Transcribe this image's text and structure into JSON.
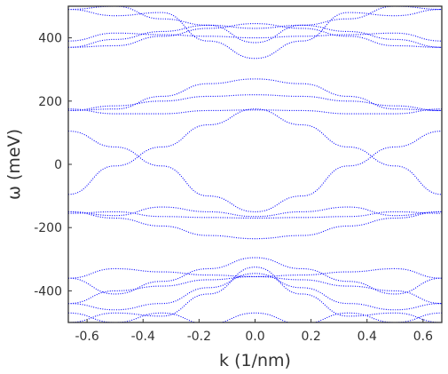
{
  "chart_data": {
    "type": "scatter",
    "xlabel": "k (1/nm)",
    "ylabel": "ω (meV)",
    "xlim": [
      -0.667,
      0.667
    ],
    "ylim": [
      -500,
      500
    ],
    "xticks": [
      -0.6,
      -0.4,
      -0.2,
      0.0,
      0.2,
      0.4,
      0.6
    ],
    "xtick_labels": [
      "-0.6",
      "-0.4",
      "-0.2",
      "0.0",
      "0.2",
      "0.4",
      "0.6"
    ],
    "yticks": [
      -400,
      -200,
      0,
      200,
      400
    ],
    "ytick_labels": [
      "-400",
      "-200",
      "0",
      "200",
      "400"
    ],
    "grid": false,
    "marker": "dotted",
    "series_color": "#0000ff",
    "series": [
      {
        "x": [
          -0.667,
          -0.5,
          -0.333,
          -0.167,
          0.0,
          0.167,
          0.333,
          0.5,
          0.667
        ],
        "y": [
          105,
          55,
          -5,
          -100,
          -150,
          -100,
          -5,
          55,
          105
        ]
      },
      {
        "x": [
          -0.667,
          -0.5,
          -0.333,
          -0.167,
          0.0,
          0.167,
          0.333,
          0.5,
          0.667
        ],
        "y": [
          -95,
          -5,
          55,
          125,
          175,
          125,
          55,
          -5,
          -95
        ]
      },
      {
        "x": [
          -0.667,
          -0.5,
          -0.333,
          -0.167,
          0.0,
          0.167,
          0.333,
          0.5,
          0.667
        ],
        "y": [
          170,
          175,
          215,
          255,
          270,
          255,
          215,
          175,
          170
        ]
      },
      {
        "x": [
          -0.667,
          -0.5,
          -0.333,
          -0.167,
          0.0,
          0.167,
          0.333,
          0.5,
          0.667
        ],
        "y": [
          170,
          185,
          200,
          215,
          220,
          215,
          200,
          185,
          170
        ]
      },
      {
        "x": [
          -0.667,
          -0.5,
          -0.333,
          -0.167,
          0.0,
          0.167,
          0.333,
          0.5,
          0.667
        ],
        "y": [
          175,
          160,
          160,
          170,
          172,
          170,
          160,
          160,
          175
        ]
      },
      {
        "x": [
          -0.667,
          -0.5,
          -0.333,
          -0.167,
          0.0,
          0.167,
          0.333,
          0.5,
          0.667
        ],
        "y": [
          -155,
          -150,
          -165,
          -168,
          -170,
          -168,
          -165,
          -150,
          -155
        ]
      },
      {
        "x": [
          -0.667,
          -0.5,
          -0.333,
          -0.167,
          0.0,
          0.167,
          0.333,
          0.5,
          0.667
        ],
        "y": [
          -150,
          -162,
          -135,
          -150,
          -165,
          -150,
          -135,
          -162,
          -150
        ]
      },
      {
        "x": [
          -0.667,
          -0.5,
          -0.333,
          -0.167,
          0.0,
          0.167,
          0.333,
          0.5,
          0.667
        ],
        "y": [
          -150,
          -170,
          -195,
          -225,
          -235,
          -225,
          -195,
          -170,
          -150
        ]
      },
      {
        "x": [
          -0.667,
          -0.5,
          -0.333,
          -0.167,
          0.0,
          0.167,
          0.333,
          0.5,
          0.667
        ],
        "y": [
          -360,
          -330,
          -340,
          -350,
          -355,
          -350,
          -340,
          -330,
          -360
        ]
      },
      {
        "x": [
          -0.667,
          -0.5,
          -0.333,
          -0.167,
          0.0,
          0.167,
          0.333,
          0.5,
          0.667
        ],
        "y": [
          -360,
          -410,
          -370,
          -330,
          -295,
          -330,
          -370,
          -410,
          -360
        ]
      },
      {
        "x": [
          -0.667,
          -0.5,
          -0.333,
          -0.167,
          0.0,
          0.167,
          0.333,
          0.5,
          0.667
        ],
        "y": [
          -440,
          -400,
          -385,
          -365,
          -355,
          -365,
          -385,
          -400,
          -440
        ]
      },
      {
        "x": [
          -0.667,
          -0.5,
          -0.333,
          -0.167,
          0.0,
          0.167,
          0.333,
          0.5,
          0.667
        ],
        "y": [
          -440,
          -460,
          -440,
          -390,
          -345,
          -390,
          -440,
          -460,
          -440
        ]
      },
      {
        "x": [
          -0.667,
          -0.5,
          -0.333,
          -0.167,
          0.0,
          0.167,
          0.333,
          0.5,
          0.667
        ],
        "y": [
          -500,
          -470,
          -480,
          -410,
          -325,
          -410,
          -480,
          -470,
          -500
        ]
      },
      {
        "x": [
          -0.667,
          -0.5,
          -0.333,
          -0.167,
          0.0,
          0.167,
          0.333,
          0.5,
          0.667
        ],
        "y": [
          -470,
          -500,
          -470,
          -505,
          -470,
          -505,
          -470,
          -500,
          -470
        ]
      },
      {
        "x": [
          -0.667,
          -0.5,
          -0.333,
          -0.167,
          0.0,
          0.167,
          0.333,
          0.5,
          0.667
        ],
        "y": [
          370,
          375,
          405,
          430,
          445,
          430,
          405,
          375,
          370
        ]
      },
      {
        "x": [
          -0.667,
          -0.5,
          -0.333,
          -0.167,
          0.0,
          0.167,
          0.333,
          0.5,
          0.667
        ],
        "y": [
          370,
          395,
          420,
          440,
          385,
          440,
          420,
          395,
          370
        ]
      },
      {
        "x": [
          -0.667,
          -0.5,
          -0.333,
          -0.167,
          0.0,
          0.167,
          0.333,
          0.5,
          0.667
        ],
        "y": [
          390,
          415,
          410,
          405,
          400,
          405,
          410,
          415,
          390
        ]
      },
      {
        "x": [
          -0.667,
          -0.5,
          -0.333,
          -0.167,
          0.0,
          0.167,
          0.333,
          0.5,
          0.667
        ],
        "y": [
          490,
          470,
          480,
          390,
          335,
          390,
          480,
          470,
          490
        ]
      },
      {
        "x": [
          -0.667,
          -0.5,
          -0.333,
          -0.167,
          0.0,
          0.167,
          0.333,
          0.5,
          0.667
        ],
        "y": [
          490,
          500,
          460,
          440,
          430,
          440,
          460,
          500,
          490
        ]
      }
    ]
  }
}
